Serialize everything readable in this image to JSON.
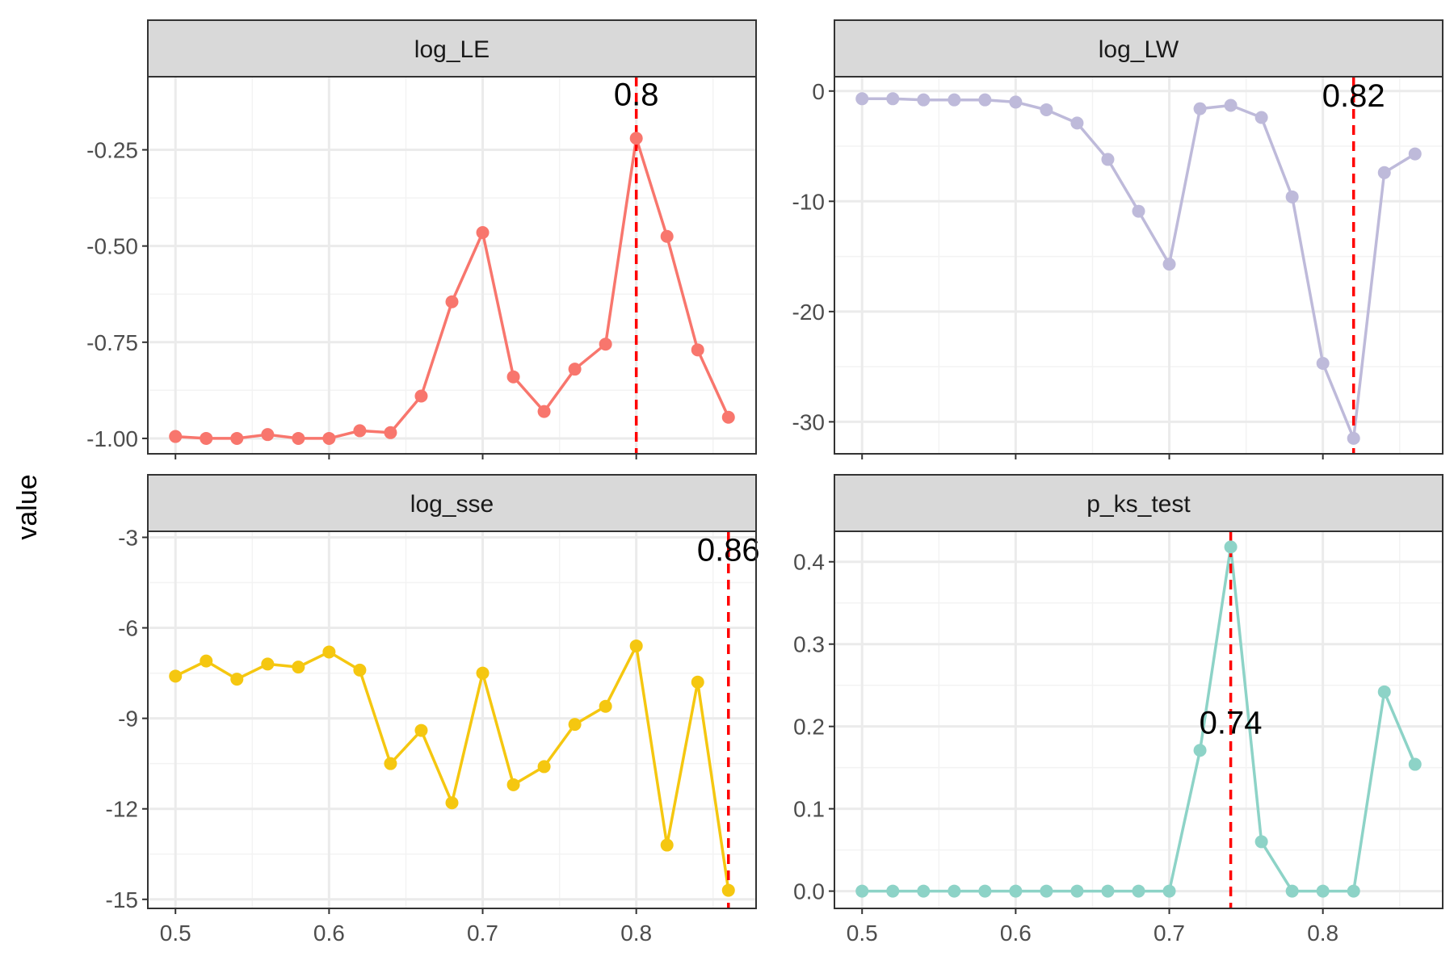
{
  "figure": {
    "ylabel": "value"
  },
  "chart_data": [
    {
      "type": "line",
      "title": "log_LE",
      "color": "#F8766D",
      "x": [
        0.5,
        0.52,
        0.54,
        0.56,
        0.58,
        0.6,
        0.62,
        0.64,
        0.66,
        0.68,
        0.7,
        0.72,
        0.74,
        0.76,
        0.78,
        0.8,
        0.82,
        0.84,
        0.86
      ],
      "values": [
        -0.995,
        -1.0,
        -1.0,
        -0.99,
        -1.0,
        -1.0,
        -0.98,
        -0.985,
        -0.89,
        -0.645,
        -0.465,
        -0.84,
        -0.93,
        -0.82,
        -0.755,
        -0.22,
        -0.475,
        -0.77,
        -0.945
      ],
      "ylim": [
        -1.04,
        -0.06
      ],
      "yticks": [
        -1.0,
        -0.75,
        -0.5,
        -0.25
      ],
      "ytick_labels": [
        "-1.00",
        "-0.75",
        "-0.50",
        "-0.25"
      ],
      "marker_x": 0.8,
      "marker_label": "0.8",
      "marker_label_y": -0.105
    },
    {
      "type": "line",
      "title": "log_LW",
      "color": "#BEBADA",
      "x": [
        0.5,
        0.52,
        0.54,
        0.56,
        0.58,
        0.6,
        0.62,
        0.64,
        0.66,
        0.68,
        0.7,
        0.72,
        0.74,
        0.76,
        0.78,
        0.8,
        0.82,
        0.84,
        0.86
      ],
      "values": [
        -0.7,
        -0.7,
        -0.8,
        -0.8,
        -0.8,
        -1.0,
        -1.7,
        -2.9,
        -6.2,
        -10.9,
        -15.7,
        -1.6,
        -1.3,
        -2.4,
        -9.6,
        -24.7,
        -31.5,
        -7.4,
        -5.7
      ],
      "ylim": [
        -32.9,
        1.3
      ],
      "yticks": [
        -30,
        -20,
        -10,
        0
      ],
      "ytick_labels": [
        "-30",
        "-20",
        "-10",
        "0"
      ],
      "marker_x": 0.82,
      "marker_label": "0.82",
      "marker_label_y": -0.4
    },
    {
      "type": "line",
      "title": "log_sse",
      "color": "#F5C710",
      "x": [
        0.5,
        0.52,
        0.54,
        0.56,
        0.58,
        0.6,
        0.62,
        0.64,
        0.66,
        0.68,
        0.7,
        0.72,
        0.74,
        0.76,
        0.78,
        0.8,
        0.82,
        0.84,
        0.86
      ],
      "values": [
        -7.6,
        -7.1,
        -7.7,
        -7.2,
        -7.3,
        -6.8,
        -7.4,
        -10.5,
        -9.4,
        -11.8,
        -7.5,
        -11.2,
        -10.6,
        -9.2,
        -8.6,
        -6.6,
        -13.2,
        -7.8,
        -14.7
      ],
      "ylim": [
        -15.3,
        -2.8
      ],
      "yticks": [
        -15,
        -12,
        -9,
        -6,
        -3
      ],
      "ytick_labels": [
        "-15",
        "-12",
        "-9",
        "-6",
        "-3"
      ],
      "marker_x": 0.86,
      "marker_label": "0.86",
      "marker_label_y": -3.4
    },
    {
      "type": "line",
      "title": "p_ks_test",
      "color": "#8DD3C7",
      "x": [
        0.5,
        0.52,
        0.54,
        0.56,
        0.58,
        0.6,
        0.62,
        0.64,
        0.66,
        0.68,
        0.7,
        0.72,
        0.74,
        0.76,
        0.78,
        0.8,
        0.82,
        0.84,
        0.86
      ],
      "values": [
        0.0,
        0.0,
        0.0,
        0.0,
        0.0,
        0.0,
        0.0,
        0.0,
        0.0,
        0.0,
        0.0,
        0.171,
        0.418,
        0.06,
        0.0,
        0.0,
        0.0,
        0.242,
        0.154
      ],
      "ylim": [
        -0.021,
        0.437
      ],
      "yticks": [
        0.0,
        0.1,
        0.2,
        0.3,
        0.4
      ],
      "ytick_labels": [
        "0.0",
        "0.1",
        "0.2",
        "0.3",
        "0.4"
      ],
      "marker_x": 0.74,
      "marker_label": "0.74",
      "marker_label_y": 0.205
    }
  ],
  "xaxis": {
    "xlim": [
      0.482,
      0.878
    ],
    "ticks": [
      0.5,
      0.6,
      0.7,
      0.8
    ],
    "tick_labels": [
      "0.5",
      "0.6",
      "0.7",
      "0.8"
    ],
    "minor_ticks": [
      0.55,
      0.65,
      0.75,
      0.85
    ]
  },
  "style": {
    "strip_bg": "#D9D9D9",
    "border": "#333333",
    "grid_major": "#EBEBEB",
    "grid_minor": "#F3F3F3",
    "marker_line": "#FF0000"
  }
}
